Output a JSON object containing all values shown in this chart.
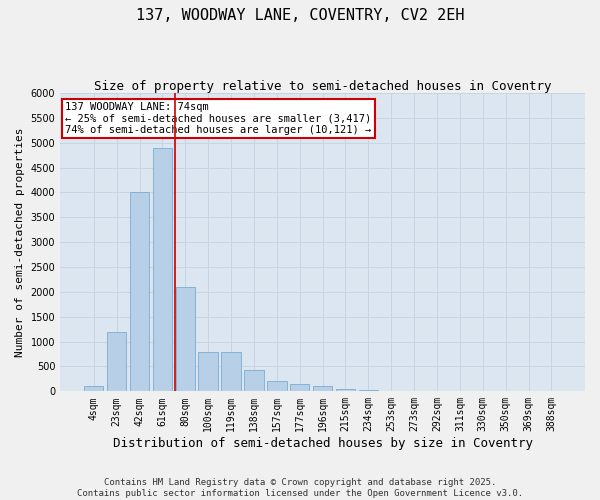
{
  "title1": "137, WOODWAY LANE, COVENTRY, CV2 2EH",
  "title2": "Size of property relative to semi-detached houses in Coventry",
  "xlabel": "Distribution of semi-detached houses by size in Coventry",
  "ylabel": "Number of semi-detached properties",
  "categories": [
    "4sqm",
    "23sqm",
    "42sqm",
    "61sqm",
    "80sqm",
    "100sqm",
    "119sqm",
    "138sqm",
    "157sqm",
    "177sqm",
    "196sqm",
    "215sqm",
    "234sqm",
    "253sqm",
    "273sqm",
    "292sqm",
    "311sqm",
    "330sqm",
    "350sqm",
    "369sqm",
    "388sqm"
  ],
  "values": [
    100,
    1200,
    4000,
    4900,
    2100,
    800,
    800,
    430,
    200,
    150,
    100,
    50,
    20,
    5,
    2,
    1,
    1,
    0,
    0,
    0,
    0
  ],
  "bar_color": "#b8cfe8",
  "bar_edge_color": "#7aadd4",
  "vline_color": "#cc0000",
  "annotation_text": "137 WOODWAY LANE: 74sqm\n← 25% of semi-detached houses are smaller (3,417)\n74% of semi-detached houses are larger (10,121) →",
  "annotation_box_color": "#ffffff",
  "annotation_box_edge": "#cc0000",
  "ylim": [
    0,
    6000
  ],
  "yticks": [
    0,
    500,
    1000,
    1500,
    2000,
    2500,
    3000,
    3500,
    4000,
    4500,
    5000,
    5500,
    6000
  ],
  "grid_color": "#c8d4e4",
  "background_color": "#dce6f0",
  "fig_background": "#f0f0f0",
  "footer_text": "Contains HM Land Registry data © Crown copyright and database right 2025.\nContains public sector information licensed under the Open Government Licence v3.0.",
  "title1_fontsize": 11,
  "title2_fontsize": 9,
  "xlabel_fontsize": 9,
  "ylabel_fontsize": 8,
  "tick_fontsize": 7,
  "annotation_fontsize": 7.5,
  "footer_fontsize": 6.5
}
